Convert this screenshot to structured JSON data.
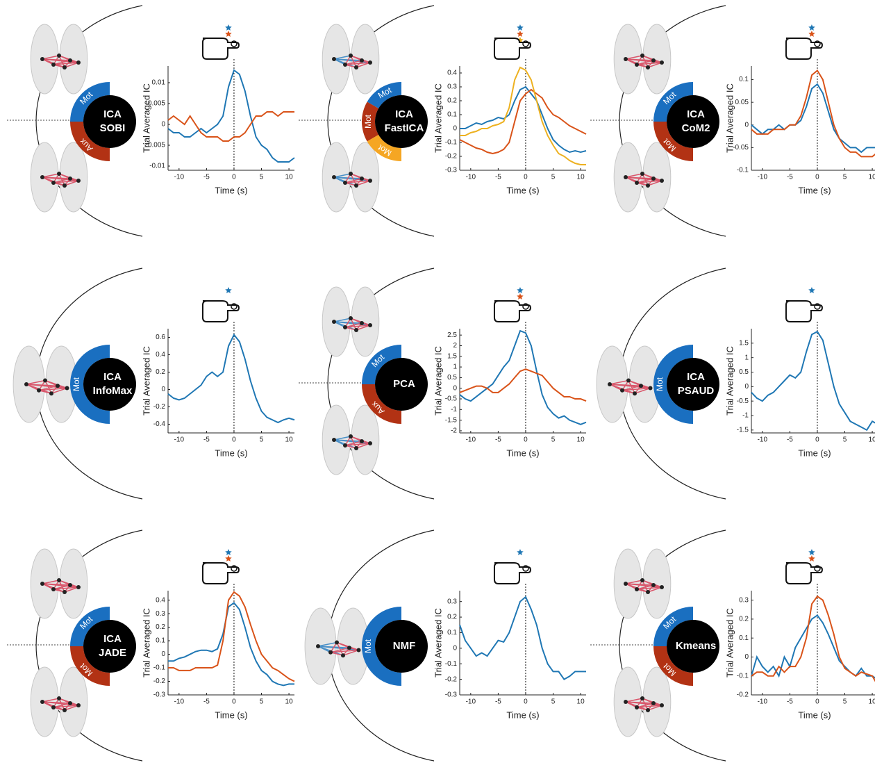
{
  "chart_data": [
    {
      "type": "line",
      "method": [
        "ICA",
        "SOBI"
      ],
      "components": [
        {
          "name": "Mot",
          "color": "#1a6fc0"
        },
        {
          "name": "Aux",
          "color": "#b23214"
        }
      ],
      "ylabel": "Trial Averaged IC",
      "xlabel": "Time (s)",
      "x": [
        -12,
        -11,
        -10,
        -9,
        -8,
        -7,
        -6,
        -5,
        -4,
        -3,
        -2,
        -1,
        0,
        1,
        2,
        3,
        4,
        5,
        6,
        7,
        8,
        9,
        10,
        11
      ],
      "xlim": [
        -12,
        11
      ],
      "xticks": [
        -10,
        -5,
        0,
        5,
        10
      ],
      "ylim": [
        -0.011,
        0.014
      ],
      "yticks": [
        -0.01,
        -0.005,
        0,
        0.005,
        0.01
      ],
      "series": [
        {
          "color": "#1f77b4",
          "values": [
            -0.001,
            -0.002,
            -0.002,
            -0.003,
            -0.003,
            -0.002,
            -0.001,
            -0.002,
            -0.001,
            0,
            0.002,
            0.009,
            0.013,
            0.012,
            0.008,
            0.002,
            -0.003,
            -0.005,
            -0.006,
            -0.008,
            -0.009,
            -0.009,
            -0.009,
            -0.008
          ]
        },
        {
          "color": "#d95319",
          "values": [
            0.001,
            0.002,
            0.001,
            0,
            0.002,
            0,
            -0.002,
            -0.003,
            -0.003,
            -0.003,
            -0.004,
            -0.004,
            -0.003,
            -0.003,
            -0.002,
            0,
            0.002,
            0.002,
            0.003,
            0.003,
            0.002,
            0.003,
            0.003,
            0.003
          ]
        }
      ]
    },
    {
      "type": "line",
      "method": [
        "ICA",
        "FastICA"
      ],
      "components": [
        {
          "name": "Mot",
          "color": "#1a6fc0"
        },
        {
          "name": "Mot",
          "color": "#b23214"
        },
        {
          "name": "Mot",
          "color": "#f5a623"
        }
      ],
      "ylabel": "Trial Averaged IC",
      "xlabel": "Time (s)",
      "x": [
        -12,
        -11,
        -10,
        -9,
        -8,
        -7,
        -6,
        -5,
        -4,
        -3,
        -2,
        -1,
        0,
        1,
        2,
        3,
        4,
        5,
        6,
        7,
        8,
        9,
        10,
        11
      ],
      "xlim": [
        -12,
        11
      ],
      "xticks": [
        -10,
        -5,
        0,
        5,
        10
      ],
      "ylim": [
        -0.3,
        0.45
      ],
      "yticks": [
        -0.3,
        -0.2,
        -0.1,
        0,
        0.1,
        0.2,
        0.3,
        0.4
      ],
      "series": [
        {
          "color": "#1f77b4",
          "values": [
            0,
            0,
            0.02,
            0.04,
            0.03,
            0.05,
            0.06,
            0.08,
            0.07,
            0.1,
            0.2,
            0.28,
            0.3,
            0.25,
            0.2,
            0.1,
            0,
            -0.08,
            -0.12,
            -0.15,
            -0.17,
            -0.16,
            -0.17,
            -0.16
          ]
        },
        {
          "color": "#d95319",
          "values": [
            -0.08,
            -0.1,
            -0.12,
            -0.14,
            -0.15,
            -0.17,
            -0.18,
            -0.17,
            -0.15,
            -0.1,
            0.05,
            0.2,
            0.25,
            0.28,
            0.25,
            0.22,
            0.15,
            0.1,
            0.08,
            0.05,
            0.02,
            0,
            -0.02,
            -0.04
          ]
        },
        {
          "color": "#edb120",
          "values": [
            -0.05,
            -0.05,
            -0.03,
            -0.02,
            0,
            0,
            0.02,
            0.03,
            0.05,
            0.15,
            0.35,
            0.44,
            0.42,
            0.35,
            0.2,
            0.05,
            -0.05,
            -0.12,
            -0.18,
            -0.2,
            -0.23,
            -0.25,
            -0.26,
            -0.26
          ]
        }
      ]
    },
    {
      "type": "line",
      "method": [
        "ICA",
        "CoM2"
      ],
      "components": [
        {
          "name": "Mot",
          "color": "#1a6fc0"
        },
        {
          "name": "Mot",
          "color": "#b23214"
        }
      ],
      "ylabel": "Trial Averaged IC",
      "xlabel": "Time (s)",
      "x": [
        -12,
        -11,
        -10,
        -9,
        -8,
        -7,
        -6,
        -5,
        -4,
        -3,
        -2,
        -1,
        0,
        1,
        2,
        3,
        4,
        5,
        6,
        7,
        8,
        9,
        10,
        11
      ],
      "xlim": [
        -12,
        11
      ],
      "xticks": [
        -10,
        -5,
        0,
        5,
        10
      ],
      "ylim": [
        -0.1,
        0.13
      ],
      "yticks": [
        -0.1,
        -0.05,
        0,
        0.05,
        0.1
      ],
      "series": [
        {
          "color": "#1f77b4",
          "values": [
            0,
            -0.01,
            -0.02,
            -0.01,
            -0.01,
            0,
            -0.01,
            0,
            0,
            0.01,
            0.04,
            0.08,
            0.09,
            0.07,
            0.03,
            -0.01,
            -0.03,
            -0.04,
            -0.05,
            -0.05,
            -0.06,
            -0.05,
            -0.05,
            -0.05
          ]
        },
        {
          "color": "#d95319",
          "values": [
            -0.01,
            -0.02,
            -0.02,
            -0.02,
            -0.01,
            -0.01,
            -0.01,
            0,
            0,
            0.02,
            0.06,
            0.11,
            0.12,
            0.1,
            0.05,
            0,
            -0.03,
            -0.05,
            -0.06,
            -0.06,
            -0.07,
            -0.07,
            -0.07,
            -0.06
          ]
        }
      ]
    },
    {
      "type": "line",
      "method": [
        "ICA",
        "InfoMax"
      ],
      "components": [
        {
          "name": "Mot",
          "color": "#1a6fc0"
        }
      ],
      "ylabel": "Trial Averaged IC",
      "xlabel": "Time (s)",
      "x": [
        -12,
        -11,
        -10,
        -9,
        -8,
        -7,
        -6,
        -5,
        -4,
        -3,
        -2,
        -1,
        0,
        1,
        2,
        3,
        4,
        5,
        6,
        7,
        8,
        9,
        10,
        11
      ],
      "xlim": [
        -12,
        11
      ],
      "xticks": [
        -10,
        -5,
        0,
        5,
        10
      ],
      "ylim": [
        -0.5,
        0.7
      ],
      "yticks": [
        -0.4,
        -0.2,
        0,
        0.2,
        0.4,
        0.6
      ],
      "series": [
        {
          "color": "#1f77b4",
          "values": [
            -0.05,
            -0.1,
            -0.12,
            -0.1,
            -0.05,
            0,
            0.05,
            0.15,
            0.2,
            0.15,
            0.2,
            0.5,
            0.63,
            0.55,
            0.35,
            0.1,
            -0.1,
            -0.25,
            -0.32,
            -0.35,
            -0.38,
            -0.35,
            -0.33,
            -0.35
          ]
        }
      ]
    },
    {
      "type": "line",
      "method": [
        "PCA"
      ],
      "components": [
        {
          "name": "Mot",
          "color": "#1a6fc0"
        },
        {
          "name": "Aux",
          "color": "#b23214"
        }
      ],
      "ylabel": "Trial Averaged IC",
      "xlabel": "Time (s)",
      "x": [
        -12,
        -11,
        -10,
        -9,
        -8,
        -7,
        -6,
        -5,
        -4,
        -3,
        -2,
        -1,
        0,
        1,
        2,
        3,
        4,
        5,
        6,
        7,
        8,
        9,
        10,
        11
      ],
      "xlim": [
        -12,
        11
      ],
      "xticks": [
        -10,
        -5,
        0,
        5,
        10
      ],
      "ylim": [
        -2.1,
        2.8
      ],
      "yticks": [
        -2,
        -1.5,
        -1,
        -0.5,
        0,
        0.5,
        1,
        1.5,
        2,
        2.5
      ],
      "series": [
        {
          "color": "#1f77b4",
          "values": [
            -0.3,
            -0.5,
            -0.6,
            -0.4,
            -0.2,
            0,
            0.2,
            0.6,
            1,
            1.3,
            2,
            2.7,
            2.6,
            2,
            0.8,
            -0.3,
            -0.9,
            -1.2,
            -1.4,
            -1.3,
            -1.5,
            -1.6,
            -1.7,
            -1.6
          ]
        },
        {
          "color": "#d95319",
          "values": [
            -0.2,
            -0.1,
            0,
            0.1,
            0.1,
            0,
            -0.2,
            -0.2,
            0,
            0.2,
            0.5,
            0.8,
            0.9,
            0.8,
            0.7,
            0.6,
            0.3,
            0,
            -0.2,
            -0.4,
            -0.4,
            -0.5,
            -0.5,
            -0.6
          ]
        }
      ]
    },
    {
      "type": "line",
      "method": [
        "ICA",
        "PSAUD"
      ],
      "components": [
        {
          "name": "Mot",
          "color": "#1a6fc0"
        }
      ],
      "ylabel": "Trial Averaged IC",
      "xlabel": "Time (s)",
      "x": [
        -12,
        -11,
        -10,
        -9,
        -8,
        -7,
        -6,
        -5,
        -4,
        -3,
        -2,
        -1,
        0,
        1,
        2,
        3,
        4,
        5,
        6,
        7,
        8,
        9,
        10,
        11
      ],
      "xlim": [
        -12,
        11
      ],
      "xticks": [
        -10,
        -5,
        0,
        5,
        10
      ],
      "ylim": [
        -1.6,
        2
      ],
      "yticks": [
        -1.5,
        -1,
        -0.5,
        0,
        0.5,
        1,
        1.5
      ],
      "series": [
        {
          "color": "#1f77b4",
          "values": [
            -0.2,
            -0.4,
            -0.5,
            -0.3,
            -0.2,
            0,
            0.2,
            0.4,
            0.3,
            0.5,
            1.2,
            1.8,
            1.9,
            1.6,
            0.8,
            0,
            -0.6,
            -0.9,
            -1.2,
            -1.3,
            -1.4,
            -1.5,
            -1.2,
            -1.3
          ]
        }
      ]
    },
    {
      "type": "line",
      "method": [
        "ICA",
        "JADE"
      ],
      "components": [
        {
          "name": "Mot",
          "color": "#1a6fc0"
        },
        {
          "name": "Mot",
          "color": "#b23214"
        }
      ],
      "ylabel": "Trial Averaged IC",
      "xlabel": "Time (s)",
      "x": [
        -12,
        -11,
        -10,
        -9,
        -8,
        -7,
        -6,
        -5,
        -4,
        -3,
        -2,
        -1,
        0,
        1,
        2,
        3,
        4,
        5,
        6,
        7,
        8,
        9,
        10,
        11
      ],
      "xlim": [
        -12,
        11
      ],
      "xticks": [
        -10,
        -5,
        0,
        5,
        10
      ],
      "ylim": [
        -0.3,
        0.47
      ],
      "yticks": [
        -0.3,
        -0.2,
        -0.1,
        0,
        0.1,
        0.2,
        0.3,
        0.4
      ],
      "series": [
        {
          "color": "#1f77b4",
          "values": [
            -0.05,
            -0.05,
            -0.03,
            -0.02,
            0,
            0.02,
            0.03,
            0.03,
            0.02,
            0.04,
            0.15,
            0.35,
            0.38,
            0.33,
            0.2,
            0.05,
            -0.05,
            -0.12,
            -0.15,
            -0.2,
            -0.22,
            -0.23,
            -0.22,
            -0.22
          ]
        },
        {
          "color": "#d95319",
          "values": [
            -0.1,
            -0.1,
            -0.12,
            -0.12,
            -0.12,
            -0.1,
            -0.1,
            -0.1,
            -0.1,
            -0.08,
            0.1,
            0.4,
            0.46,
            0.43,
            0.35,
            0.22,
            0.1,
            0,
            -0.05,
            -0.1,
            -0.12,
            -0.15,
            -0.18,
            -0.2
          ]
        }
      ]
    },
    {
      "type": "line",
      "method": [
        "NMF"
      ],
      "components": [
        {
          "name": "Mot",
          "color": "#1a6fc0"
        }
      ],
      "ylabel": "Trial Averaged IC",
      "xlabel": "Time (s)",
      "x": [
        -12,
        -11,
        -10,
        -9,
        -8,
        -7,
        -6,
        -5,
        -4,
        -3,
        -2,
        -1,
        0,
        1,
        2,
        3,
        4,
        5,
        6,
        7,
        8,
        9,
        10,
        11
      ],
      "xlim": [
        -12,
        11
      ],
      "xticks": [
        -10,
        -5,
        0,
        5,
        10
      ],
      "ylim": [
        -0.3,
        0.37
      ],
      "yticks": [
        -0.3,
        -0.2,
        -0.1,
        0,
        0.1,
        0.2,
        0.3
      ],
      "series": [
        {
          "color": "#1f77b4",
          "values": [
            0.15,
            0.05,
            0,
            -0.05,
            -0.03,
            -0.05,
            0,
            0.05,
            0.04,
            0.1,
            0.2,
            0.3,
            0.33,
            0.25,
            0.15,
            0,
            -0.1,
            -0.15,
            -0.15,
            -0.2,
            -0.18,
            -0.15,
            -0.15,
            -0.15
          ]
        }
      ]
    },
    {
      "type": "line",
      "method": [
        "Kmeans"
      ],
      "components": [
        {
          "name": "Mot",
          "color": "#1a6fc0"
        },
        {
          "name": "Mot",
          "color": "#b23214"
        }
      ],
      "ylabel": "Trial Averaged IC",
      "xlabel": "Time (s)",
      "x": [
        -12,
        -11,
        -10,
        -9,
        -8,
        -7,
        -6,
        -5,
        -4,
        -3,
        -2,
        -1,
        0,
        1,
        2,
        3,
        4,
        5,
        6,
        7,
        8,
        9,
        10,
        11
      ],
      "xlim": [
        -12,
        11
      ],
      "xticks": [
        -10,
        -5,
        0,
        5,
        10
      ],
      "ylim": [
        -0.2,
        0.35
      ],
      "yticks": [
        -0.2,
        -0.1,
        0,
        0.1,
        0.2,
        0.3
      ],
      "series": [
        {
          "color": "#1f77b4",
          "values": [
            -0.1,
            0,
            -0.05,
            -0.08,
            -0.05,
            -0.1,
            0,
            -0.05,
            0.05,
            0.1,
            0.15,
            0.2,
            0.22,
            0.18,
            0.12,
            0.05,
            -0.02,
            -0.05,
            -0.08,
            -0.1,
            -0.06,
            -0.1,
            -0.1,
            -0.12
          ]
        },
        {
          "color": "#d95319",
          "values": [
            -0.1,
            -0.08,
            -0.08,
            -0.1,
            -0.1,
            -0.05,
            -0.08,
            -0.05,
            -0.05,
            0,
            0.1,
            0.28,
            0.32,
            0.3,
            0.22,
            0.12,
            0,
            -0.06,
            -0.08,
            -0.1,
            -0.08,
            -0.09,
            -0.1,
            -0.15
          ]
        }
      ]
    }
  ]
}
